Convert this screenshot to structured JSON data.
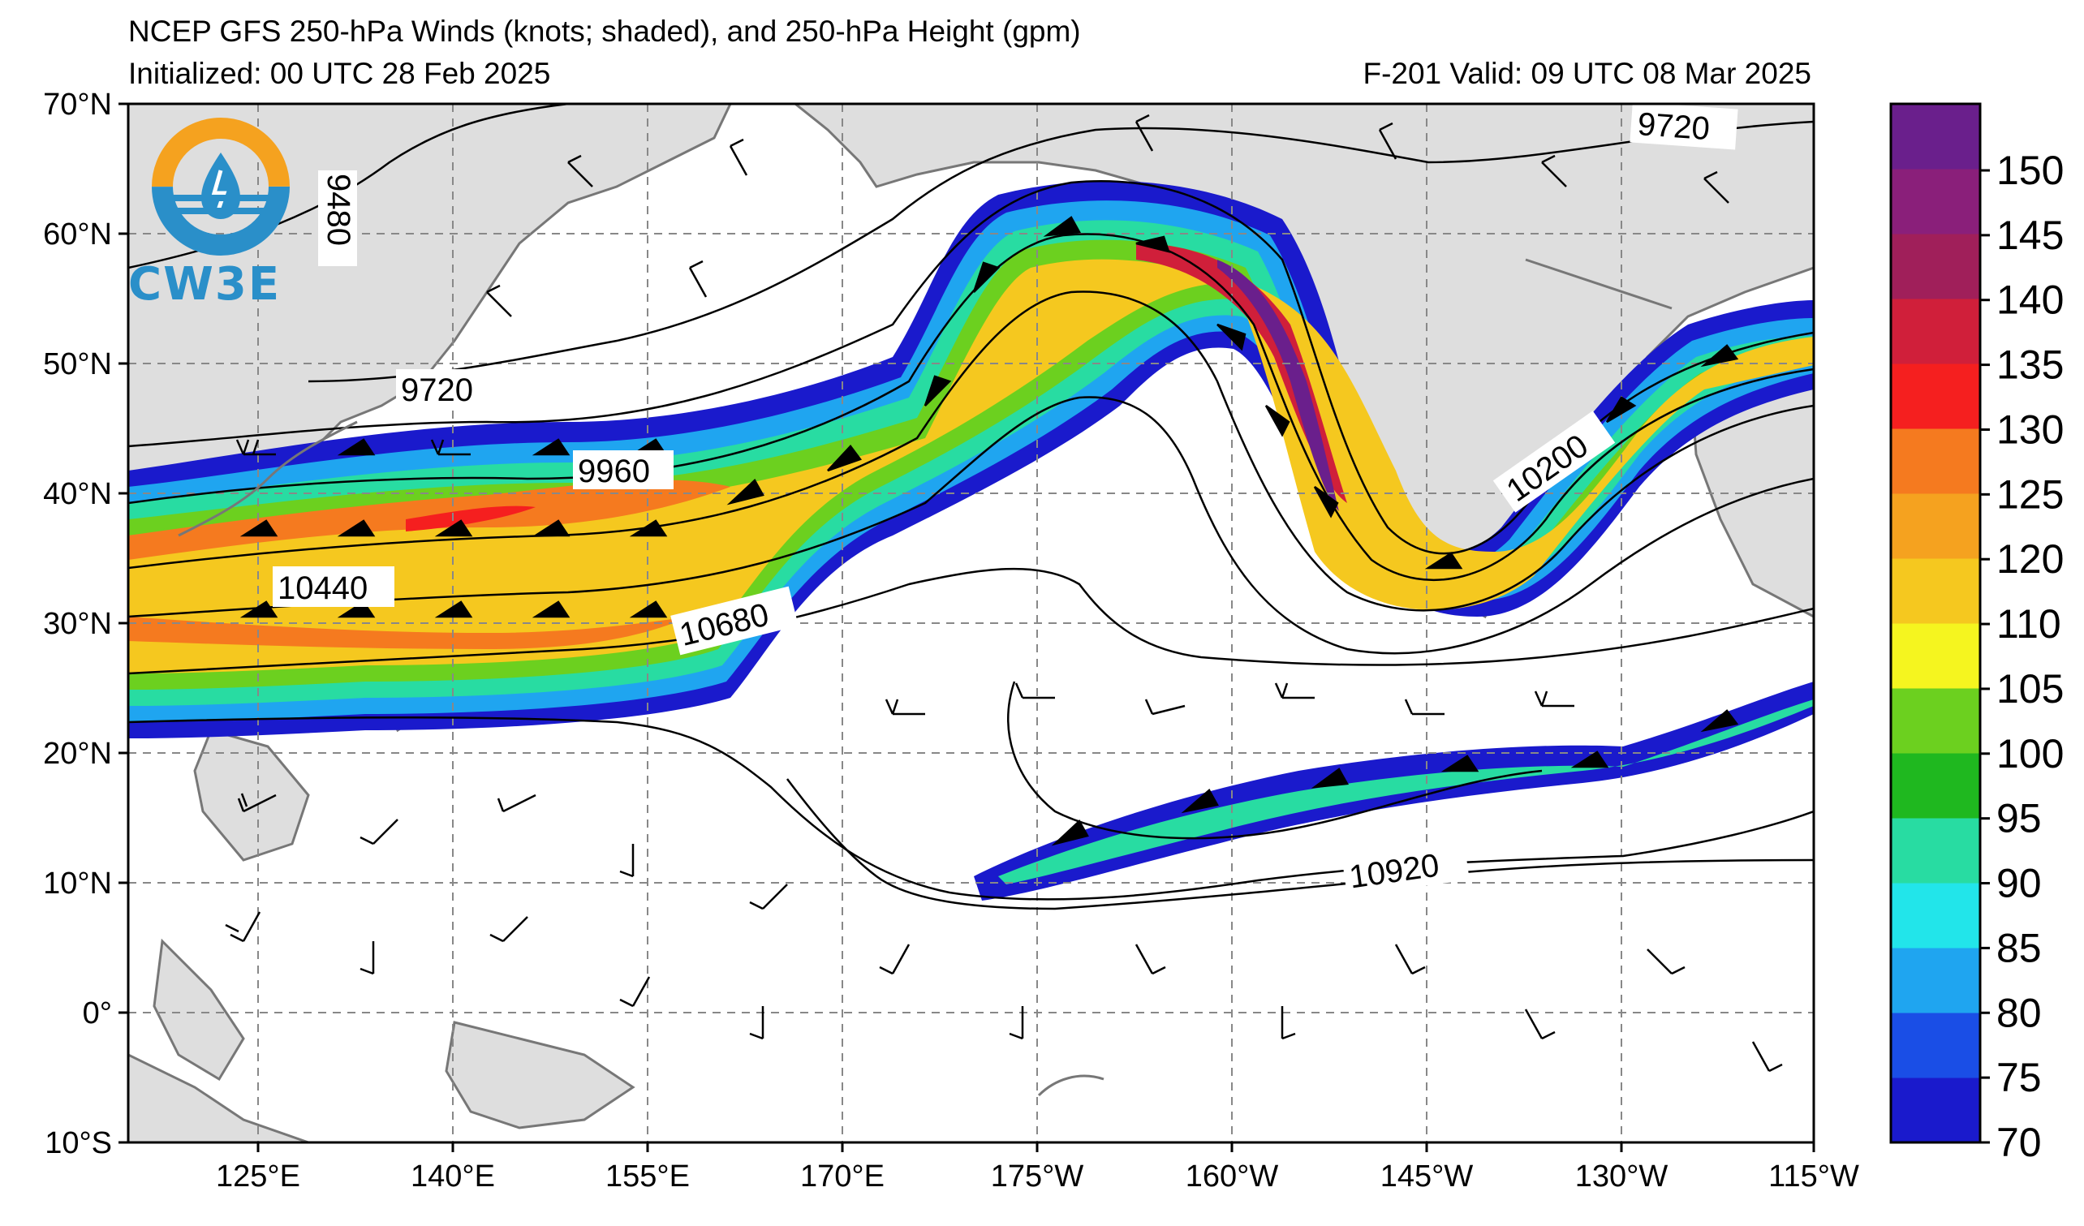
{
  "header": {
    "title_line1": "NCEP GFS 250-hPa Winds (knots; shaded), and 250-hPa Height (gpm)",
    "title_line2": "Initialized: 00 UTC 28 Feb 2025",
    "valid_line": "F-201  Valid: 09 UTC 08 Mar 2025"
  },
  "map": {
    "lat_labels": [
      "70°N",
      "60°N",
      "50°N",
      "40°N",
      "30°N",
      "20°N",
      "10°N",
      "0°",
      "10°S"
    ],
    "lon_labels": [
      "125°E",
      "140°E",
      "155°E",
      "170°E",
      "175°W",
      "160°W",
      "145°W",
      "130°W",
      "115°W"
    ],
    "contour_labels": [
      "9480",
      "9720",
      "9720",
      "9960",
      "10200",
      "10440",
      "10680",
      "10920"
    ],
    "land_color": "#dedede",
    "grid_style": "dashed gray"
  },
  "colorbar": {
    "ticks": [
      "150",
      "145",
      "140",
      "135",
      "130",
      "125",
      "120",
      "110",
      "105",
      "100",
      "95",
      "90",
      "85",
      "80",
      "75",
      "70"
    ],
    "colors": [
      "#1a1acc",
      "#1a4ee6",
      "#1fa5f0",
      "#22e5ea",
      "#28dca2",
      "#1fb81f",
      "#6cd01f",
      "#f5f51f",
      "#f5c81f",
      "#f5a21f",
      "#f57a1f",
      "#f51f1f",
      "#d01f3a",
      "#a01f5a",
      "#8a1f7a",
      "#6a1f8c"
    ]
  },
  "logo": {
    "text": "CW3E",
    "icon": "cw3e-logo-icon"
  }
}
